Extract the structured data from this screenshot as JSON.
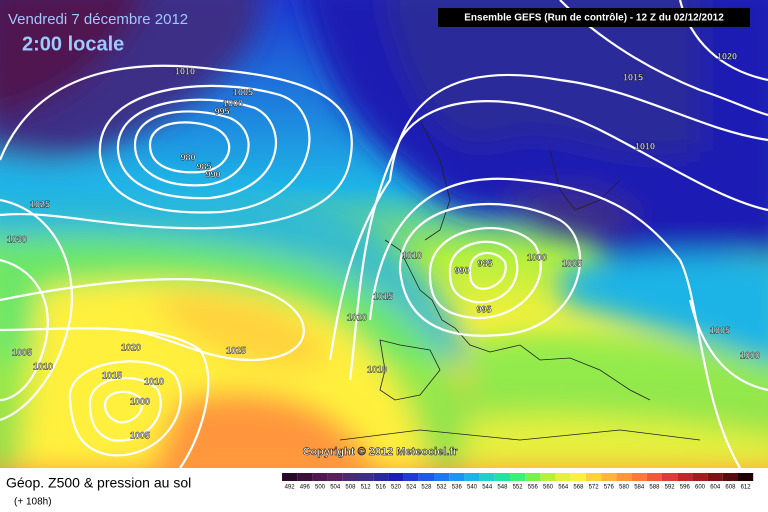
{
  "header": {
    "date": "Vendredi 7 décembre 2012",
    "time": "2:00 locale",
    "model": "Ensemble GEFS (Run de contrôle)  -  12 Z du 02/12/2012"
  },
  "copyright": "Copyright © 2012 Meteociel.fr",
  "footer": {
    "title": "Géop. Z500 & pression au sol",
    "lead": "(+ 108h)"
  },
  "isobar_labels": [
    1010,
    1005,
    1000,
    995,
    980,
    985,
    990,
    1025,
    1030,
    1010,
    985,
    990,
    1000,
    1005,
    995,
    1015,
    1020,
    1025,
    1020,
    1005,
    1010,
    1015,
    1010,
    1000,
    1005,
    1010,
    1015,
    1020,
    1010,
    1005,
    1000
  ],
  "legend": {
    "values": [
      492,
      496,
      500,
      504,
      508,
      512,
      516,
      520,
      524,
      528,
      532,
      536,
      540,
      544,
      548,
      552,
      556,
      560,
      564,
      568,
      572,
      576,
      580,
      584,
      588,
      592,
      596,
      600,
      604,
      608,
      612
    ],
    "colors": [
      "#2a0a2a",
      "#3d0f3d",
      "#501850",
      "#5a1f5e",
      "#4b2a72",
      "#3d2f86",
      "#2a2a9a",
      "#1e1eb4",
      "#1e3cd2",
      "#1e5ae6",
      "#1e78f0",
      "#1e96f0",
      "#1eb4e6",
      "#1ed2c8",
      "#1ee6a0",
      "#3cf078",
      "#78f050",
      "#b4f03c",
      "#e6f03c",
      "#fff03c",
      "#ffd23c",
      "#ffb43c",
      "#ff963c",
      "#ff783c",
      "#f05a3c",
      "#dc3c3c",
      "#be2828",
      "#a01e1e",
      "#7d1414",
      "#5a0a0a",
      "#1e0000"
    ]
  }
}
